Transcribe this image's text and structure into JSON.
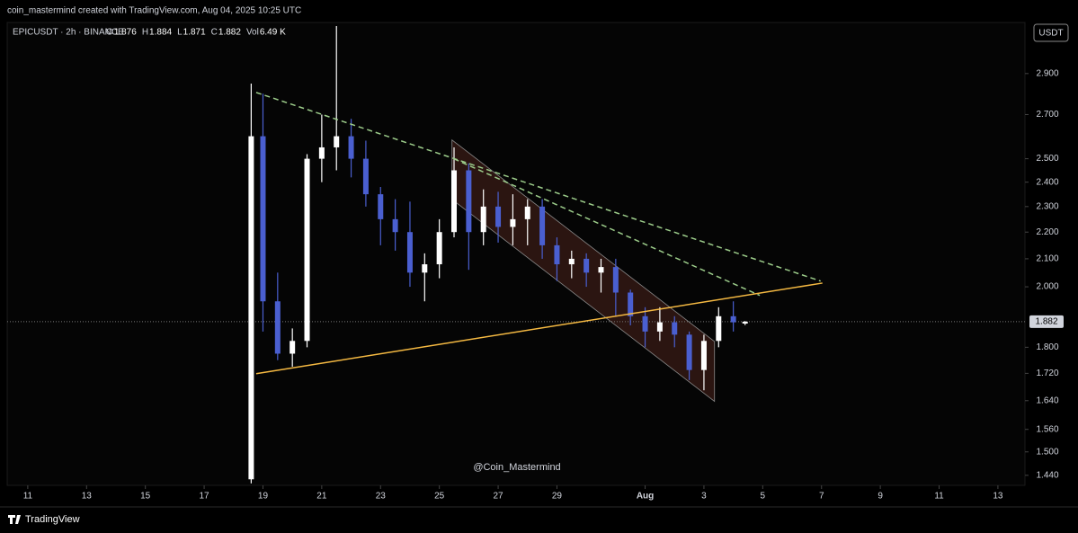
{
  "header": {
    "credit": "coin_mastermind created with TradingView.com, Aug 04, 2025 10:25 UTC"
  },
  "chart_data": {
    "type": "candlestick",
    "symbol": "EPICUSDT · 2h · BINANCE",
    "legend": [
      {
        "label": "O",
        "value": 1.876
      },
      {
        "label": "H",
        "value": 1.884
      },
      {
        "label": "L",
        "value": 1.871
      },
      {
        "label": "C",
        "value": 1.882
      },
      {
        "label": "Vol",
        "value": "6.49 K"
      }
    ],
    "currency": "USDT",
    "watermark": "@Coin_Mastermind",
    "log_scale": true,
    "up_color": "#ffffff",
    "down_color": "#4a5fd0",
    "x": [
      18.6,
      19.0,
      19.5,
      20.0,
      20.5,
      21.0,
      21.5,
      22.0,
      22.5,
      23.0,
      23.5,
      24.0,
      24.5,
      25.0,
      25.5,
      26.0,
      26.5,
      27.0,
      27.5,
      28.0,
      28.5,
      29.0,
      29.5,
      30.0,
      30.5,
      31.0,
      31.5,
      32.0,
      32.5,
      33.0,
      33.5,
      34.0,
      34.5,
      35.0,
      35.4
    ],
    "open": [
      1.43,
      2.6,
      1.95,
      1.78,
      1.82,
      2.5,
      2.55,
      2.6,
      2.5,
      2.35,
      2.25,
      2.2,
      2.05,
      2.08,
      2.2,
      2.45,
      2.2,
      2.3,
      2.22,
      2.25,
      2.3,
      2.15,
      2.08,
      2.1,
      2.05,
      2.07,
      1.98,
      1.9,
      1.85,
      1.88,
      1.84,
      1.73,
      1.82,
      1.9,
      1.876
    ],
    "high": [
      2.85,
      2.8,
      2.05,
      1.86,
      2.52,
      2.7,
      3.15,
      2.68,
      2.58,
      2.38,
      2.33,
      2.32,
      2.12,
      2.25,
      2.55,
      2.48,
      2.37,
      2.36,
      2.35,
      2.33,
      2.33,
      2.18,
      2.13,
      2.12,
      2.1,
      2.1,
      1.99,
      1.93,
      1.93,
      1.9,
      1.85,
      1.84,
      1.93,
      1.95,
      1.884
    ],
    "low": [
      1.42,
      1.85,
      1.76,
      1.74,
      1.8,
      2.4,
      2.45,
      2.42,
      2.3,
      2.15,
      2.13,
      2.0,
      1.95,
      2.03,
      2.18,
      2.06,
      2.15,
      2.16,
      2.15,
      2.15,
      2.1,
      2.02,
      2.03,
      2.0,
      1.98,
      1.9,
      1.87,
      1.8,
      1.82,
      1.8,
      1.7,
      1.67,
      1.8,
      1.85,
      1.871
    ],
    "close": [
      2.6,
      1.95,
      1.78,
      1.82,
      2.5,
      2.55,
      2.6,
      2.5,
      2.35,
      2.25,
      2.2,
      2.05,
      2.08,
      2.2,
      2.45,
      2.2,
      2.3,
      2.22,
      2.25,
      2.3,
      2.15,
      2.08,
      2.1,
      2.05,
      2.07,
      1.98,
      1.9,
      1.85,
      1.88,
      1.84,
      1.73,
      1.82,
      1.9,
      1.88,
      1.882
    ],
    "last_price": 1.882,
    "xlim": [
      10.3,
      44.92
    ],
    "ylim": [
      1.415,
      3.17
    ],
    "xticks": [
      11,
      13,
      15,
      17,
      19,
      21,
      23,
      25,
      27,
      29,
      {
        "value": 32,
        "label": "Aug"
      },
      {
        "value": 34,
        "label": "3"
      },
      {
        "value": 36,
        "label": "5"
      },
      {
        "value": 38,
        "label": "7"
      },
      {
        "value": 40,
        "label": "9"
      },
      {
        "value": 42,
        "label": "11"
      },
      {
        "value": 44,
        "label": "13"
      }
    ],
    "yticks": [
      {
        "value": 1.44,
        "label": "1.440"
      },
      {
        "value": 1.5,
        "label": "1.500"
      },
      {
        "value": 1.56,
        "label": "1.560"
      },
      {
        "value": 1.64,
        "label": "1.640"
      },
      {
        "value": 1.72,
        "label": "1.720"
      },
      {
        "value": 1.8,
        "label": "1.800"
      },
      {
        "value": 2.0,
        "label": "2.000"
      },
      {
        "value": 2.1,
        "label": "2.100"
      },
      {
        "value": 2.2,
        "label": "2.200"
      },
      {
        "value": 2.3,
        "label": "2.300"
      },
      {
        "value": 2.4,
        "label": "2.400"
      },
      {
        "value": 2.5,
        "label": "2.500"
      },
      {
        "value": 2.7,
        "label": "2.700"
      },
      {
        "value": 2.9,
        "label": "2.900"
      }
    ],
    "channel": {
      "color": "#5a2a22",
      "x": [
        25.43,
        34.36,
        34.36,
        25.43
      ],
      "y": [
        2.583,
        1.818,
        1.638,
        2.329
      ]
    },
    "trendlines": [
      {
        "color": "#f5b942",
        "dashed": false,
        "x": [
          18.77,
          38.03
        ],
        "y": [
          1.719,
          2.013
        ]
      },
      {
        "color": "#9ccc8a",
        "dashed": true,
        "x": [
          18.77,
          37.97
        ],
        "y": [
          2.806,
          2.02
        ]
      },
      {
        "color": "#9ccc8a",
        "dashed": true,
        "x": [
          25.49,
          35.9
        ],
        "y": [
          2.5,
          1.97
        ]
      }
    ]
  },
  "footer": {
    "brand": "TradingView"
  }
}
